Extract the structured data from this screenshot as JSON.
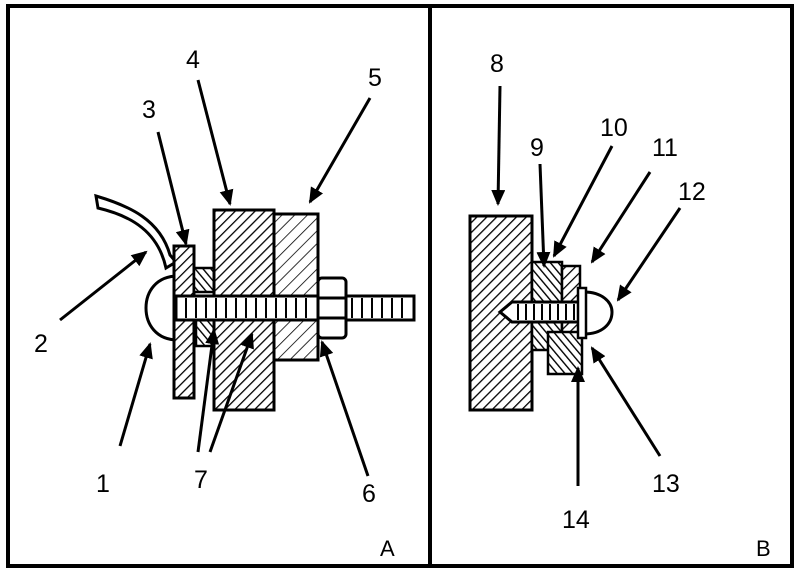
{
  "panels": [
    {
      "id": "A",
      "label": "A"
    },
    {
      "id": "B",
      "label": "B"
    }
  ],
  "callouts": {
    "c1": "1",
    "c2": "2",
    "c3": "3",
    "c4": "4",
    "c5": "5",
    "c6": "6",
    "c7": "7",
    "c8": "8",
    "c9": "9",
    "c10": "10",
    "c11": "11",
    "c12": "12",
    "c13": "13",
    "c14": "14"
  },
  "colors": {
    "ink": "#000000",
    "paper": "#ffffff"
  }
}
